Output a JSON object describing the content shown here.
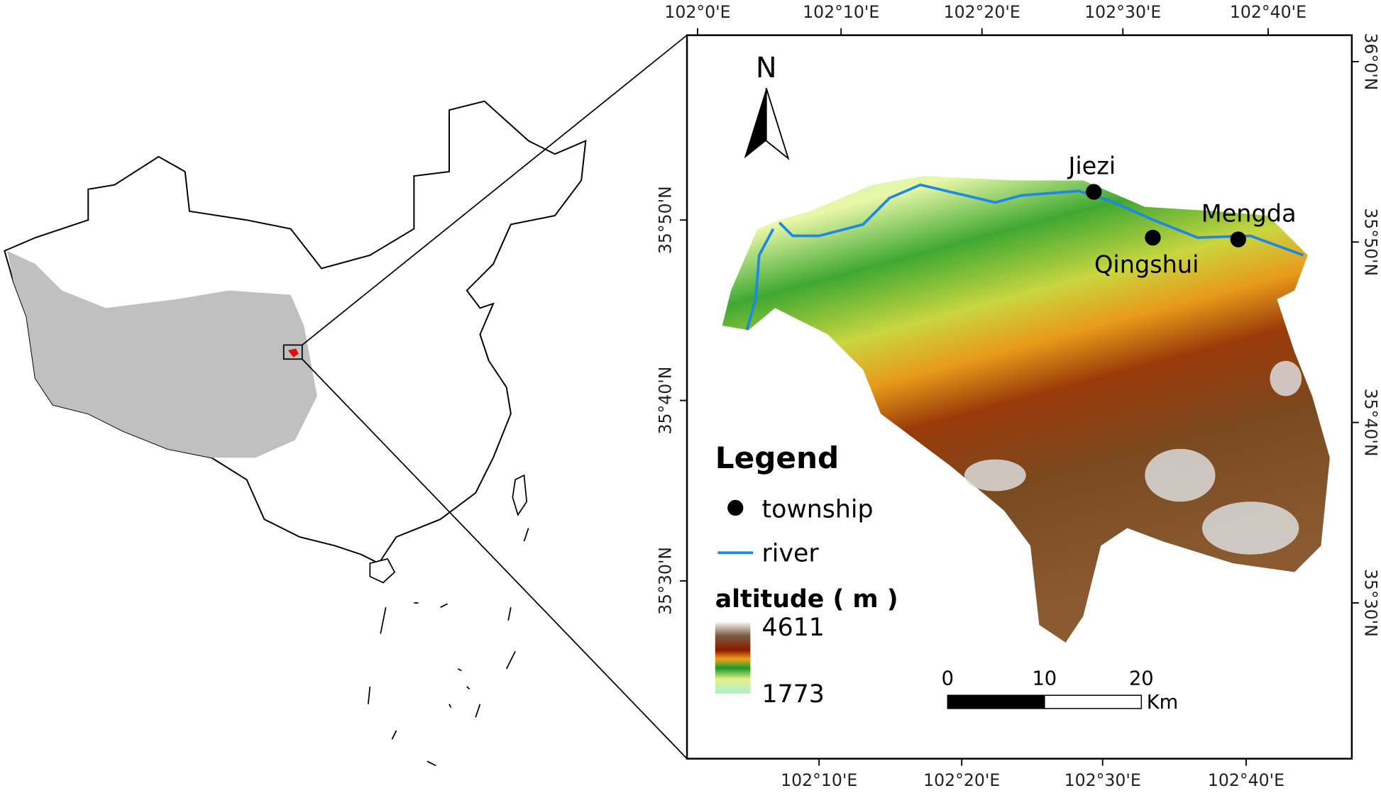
{
  "map": {
    "coordinates": {
      "top": [
        "102°0'E",
        "102°10'E",
        "102°20'E",
        "102°30'E",
        "102°40'E"
      ],
      "bottom": [
        "102°10'E",
        "102°20'E",
        "102°30'E",
        "102°40'E"
      ],
      "left": [
        "35°50'N",
        "35°40'N",
        "35°30'N"
      ],
      "right": [
        "36°0'N",
        "35°50'N",
        "35°40'N",
        "35°30'N"
      ]
    },
    "north": "N",
    "townships": [
      {
        "label": "Jiezi"
      },
      {
        "label": "Qingshui"
      },
      {
        "label": "Mengda"
      }
    ],
    "legend": {
      "title": "Legend",
      "items": [
        "township",
        "river"
      ],
      "altitude_title": "altitude ( m )",
      "max": 4611,
      "min": 1773
    },
    "scale": {
      "ticks": [
        0,
        10,
        20
      ],
      "unit": "Km"
    }
  }
}
